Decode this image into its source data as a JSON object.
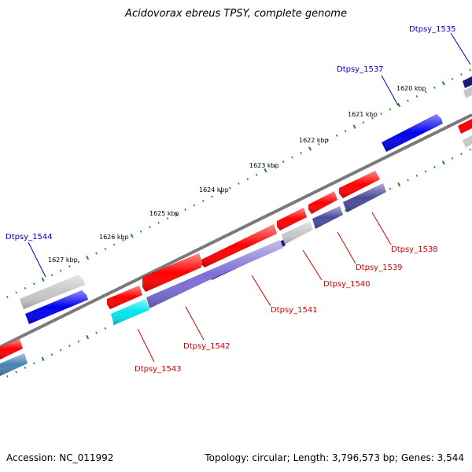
{
  "title": "Acidovorax ebreus TPSY, complete genome",
  "footer": {
    "accession": "Accession: NC_011992",
    "info": "Topology: circular; Length: 3,796,573 bp; Genes: 3,544"
  },
  "ticks": [
    "1620 kbp",
    "1621 kbp",
    "1622 kbp",
    "1623 kbp",
    "1624 kbp",
    "1625 kbp",
    "1626 kbp",
    "1627 kbp"
  ],
  "forward_genes": [
    "Dtpsy_1535",
    "Dtpsy_1537",
    "Dtpsy_1544"
  ],
  "reverse_genes": [
    "Dtpsy_1538",
    "Dtpsy_1539",
    "Dtpsy_1540",
    "Dtpsy_1541",
    "Dtpsy_1542",
    "Dtpsy_1543"
  ],
  "colors": {
    "forward_label": "#0000cc",
    "reverse_label": "#cc0000",
    "backbone": "#888888",
    "tick": "#228b22",
    "gene_red": "#ff0000",
    "gene_blue": "#0000ee",
    "gene_gray": "#c8c8c8",
    "gene_navy": "#1a1a7a",
    "gene_slate": "#4a4a9a",
    "gene_lavender": "#7b6fd6",
    "gene_cyan": "#00e5ee",
    "gene_steel": "#4682b4"
  }
}
